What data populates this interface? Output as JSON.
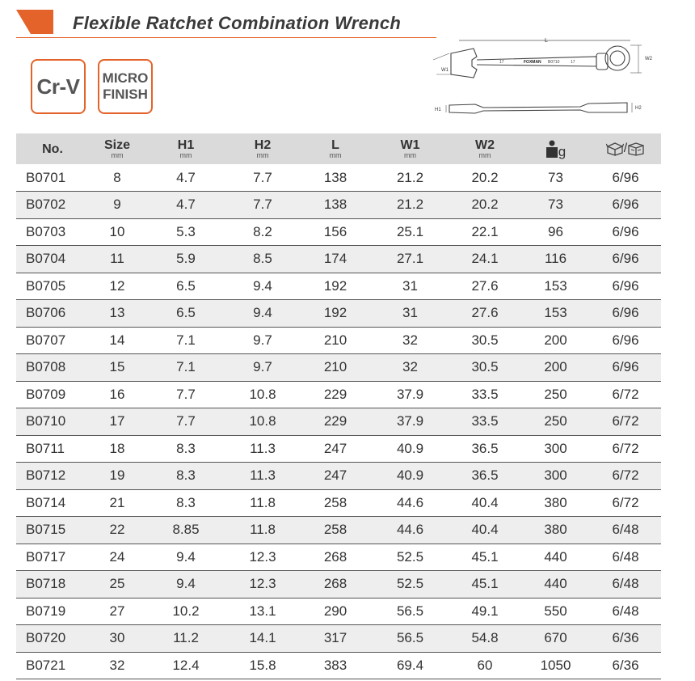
{
  "header": {
    "title": "Flexible Ratchet Combination Wrench",
    "accent_color": "#e4632a"
  },
  "badges": {
    "material": "Cr-V",
    "finish_line1": "MICRO",
    "finish_line2": "FINISH"
  },
  "diagram": {
    "label_L": "L",
    "label_W1": "W1",
    "label_W2": "W2",
    "label_H1": "H1",
    "label_H2": "H2",
    "stamp_size_left": "17",
    "stamp_brand": "FOXMAN",
    "stamp_model": "B0710",
    "stamp_size_right": "17"
  },
  "table": {
    "columns": [
      {
        "label": "No.",
        "unit": ""
      },
      {
        "label": "Size",
        "unit": "mm"
      },
      {
        "label": "H1",
        "unit": "mm"
      },
      {
        "label": "H2",
        "unit": "mm"
      },
      {
        "label": "L",
        "unit": "mm"
      },
      {
        "label": "W1",
        "unit": "mm"
      },
      {
        "label": "W2",
        "unit": "mm"
      },
      {
        "label": "g",
        "unit": "",
        "icon": "weight-icon"
      },
      {
        "label": "/",
        "unit": "",
        "icon": "package-box-icon"
      }
    ],
    "rows": [
      [
        "B0701",
        "8",
        "4.7",
        "7.7",
        "138",
        "21.2",
        "20.2",
        "73",
        "6/96"
      ],
      [
        "B0702",
        "9",
        "4.7",
        "7.7",
        "138",
        "21.2",
        "20.2",
        "73",
        "6/96"
      ],
      [
        "B0703",
        "10",
        "5.3",
        "8.2",
        "156",
        "25.1",
        "22.1",
        "96",
        "6/96"
      ],
      [
        "B0704",
        "11",
        "5.9",
        "8.5",
        "174",
        "27.1",
        "24.1",
        "116",
        "6/96"
      ],
      [
        "B0705",
        "12",
        "6.5",
        "9.4",
        "192",
        "31",
        "27.6",
        "153",
        "6/96"
      ],
      [
        "B0706",
        "13",
        "6.5",
        "9.4",
        "192",
        "31",
        "27.6",
        "153",
        "6/96"
      ],
      [
        "B0707",
        "14",
        "7.1",
        "9.7",
        "210",
        "32",
        "30.5",
        "200",
        "6/96"
      ],
      [
        "B0708",
        "15",
        "7.1",
        "9.7",
        "210",
        "32",
        "30.5",
        "200",
        "6/96"
      ],
      [
        "B0709",
        "16",
        "7.7",
        "10.8",
        "229",
        "37.9",
        "33.5",
        "250",
        "6/72"
      ],
      [
        "B0710",
        "17",
        "7.7",
        "10.8",
        "229",
        "37.9",
        "33.5",
        "250",
        "6/72"
      ],
      [
        "B0711",
        "18",
        "8.3",
        "11.3",
        "247",
        "40.9",
        "36.5",
        "300",
        "6/72"
      ],
      [
        "B0712",
        "19",
        "8.3",
        "11.3",
        "247",
        "40.9",
        "36.5",
        "300",
        "6/72"
      ],
      [
        "B0714",
        "21",
        "8.3",
        "11.8",
        "258",
        "44.6",
        "40.4",
        "380",
        "6/72"
      ],
      [
        "B0715",
        "22",
        "8.85",
        "11.8",
        "258",
        "44.6",
        "40.4",
        "380",
        "6/48"
      ],
      [
        "B0717",
        "24",
        "9.4",
        "12.3",
        "268",
        "52.5",
        "45.1",
        "440",
        "6/48"
      ],
      [
        "B0718",
        "25",
        "9.4",
        "12.3",
        "268",
        "52.5",
        "45.1",
        "440",
        "6/48"
      ],
      [
        "B0719",
        "27",
        "10.2",
        "13.1",
        "290",
        "56.5",
        "49.1",
        "550",
        "6/48"
      ],
      [
        "B0720",
        "30",
        "11.2",
        "14.1",
        "317",
        "56.5",
        "54.8",
        "670",
        "6/36"
      ],
      [
        "B0721",
        "32",
        "12.4",
        "15.8",
        "383",
        "69.4",
        "60",
        "1050",
        "6/36"
      ]
    ]
  }
}
